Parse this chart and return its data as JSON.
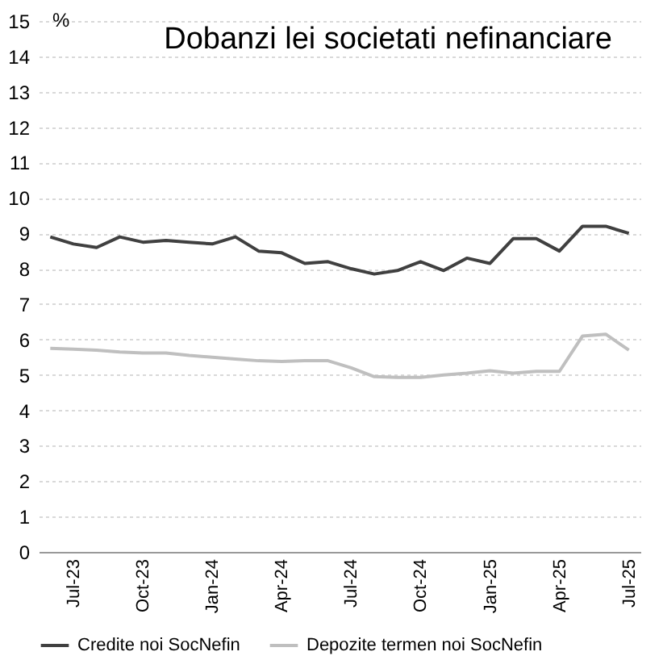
{
  "chart_data": {
    "type": "line",
    "title": "Dobanzi lei societati nefinanciare",
    "ylabel": "%",
    "categories": [
      null,
      "Jul-23",
      null,
      null,
      "Oct-23",
      null,
      null,
      "Jan-24",
      null,
      null,
      "Apr-24",
      null,
      null,
      "Jul-24",
      null,
      null,
      "Oct-24",
      null,
      null,
      "Jan-25",
      null,
      null,
      "Apr-25",
      null,
      null,
      "Jul-25"
    ],
    "series": [
      {
        "name": "Credite noi SocNefin",
        "color": "#404040",
        "values": [
          8.9,
          8.7,
          8.6,
          8.9,
          8.75,
          8.8,
          8.75,
          8.7,
          8.9,
          8.5,
          8.45,
          8.15,
          8.2,
          8.0,
          7.85,
          7.95,
          8.2,
          7.95,
          8.3,
          8.15,
          8.85,
          8.85,
          8.5,
          9.2,
          9.2,
          9.0
        ]
      },
      {
        "name": "Depozite termen noi SocNefin",
        "color": "#bfbfbf",
        "values": [
          5.75,
          5.73,
          5.7,
          5.65,
          5.62,
          5.62,
          5.55,
          5.5,
          5.45,
          5.4,
          5.38,
          5.4,
          5.4,
          5.2,
          4.95,
          4.93,
          4.93,
          5.0,
          5.05,
          5.12,
          5.05,
          5.1,
          5.1,
          6.1,
          6.15,
          5.7
        ]
      }
    ],
    "ylim": [
      0,
      15
    ],
    "yticks": [
      0,
      1,
      2,
      3,
      4,
      5,
      6,
      7,
      8,
      9,
      10,
      11,
      12,
      13,
      14,
      15
    ],
    "grid": "y",
    "legend": "bottom",
    "line_style": "solid"
  }
}
